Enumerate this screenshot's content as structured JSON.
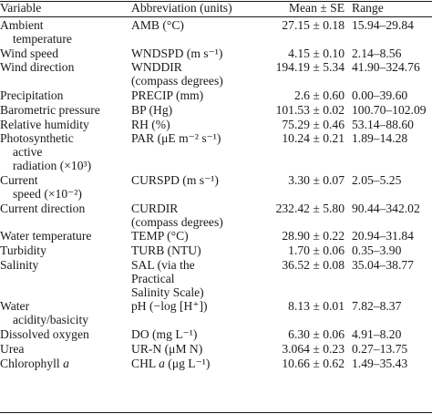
{
  "table": {
    "headers": [
      "Variable",
      "Abbreviation (units)",
      "Mean ± SE",
      "Range"
    ],
    "rows": [
      {
        "variable": [
          "Ambient",
          "temperature"
        ],
        "abbr": [
          "AMB (°C)"
        ],
        "mean": "27.15 ± 0.18",
        "range": "15.94–29.84"
      },
      {
        "variable": [
          "Wind speed"
        ],
        "abbr": [
          "WNDSPD (m s⁻¹)"
        ],
        "mean": "4.15 ± 0.10",
        "range": "2.14–8.56"
      },
      {
        "variable": [
          "Wind direction"
        ],
        "abbr": [
          "WNDDIR",
          "(compass degrees)"
        ],
        "mean": "194.19 ± 5.34",
        "range": "41.90–324.76"
      },
      {
        "variable": [
          "Precipitation"
        ],
        "abbr": [
          "PRECIP (mm)"
        ],
        "mean": "2.6 ± 0.60",
        "range": "0.00–39.60"
      },
      {
        "variable": [
          "Barometric pressure"
        ],
        "abbr": [
          "BP (Hg)"
        ],
        "mean": "101.53 ± 0.02",
        "range": "100.70–102.09"
      },
      {
        "variable": [
          "Relative humidity"
        ],
        "abbr": [
          "RH (%)"
        ],
        "mean": "75.29 ± 0.46",
        "range": "53.14–88.60"
      },
      {
        "variable": [
          "Photosynthetic",
          "active",
          "radiation (×10³)"
        ],
        "abbr": [
          "PAR (μE m⁻² s⁻¹)"
        ],
        "mean": "10.24 ± 0.21",
        "range": "1.89–14.28"
      },
      {
        "variable": [
          "Current",
          "speed (×10⁻²)"
        ],
        "abbr": [
          "CURSPD (m s⁻¹)"
        ],
        "mean": "3.30 ± 0.07",
        "range": "2.05–5.25"
      },
      {
        "variable": [
          "Current direction"
        ],
        "abbr": [
          "CURDIR",
          "(compass degrees)"
        ],
        "mean": "232.42 ± 5.80",
        "range": "90.44–342.02"
      },
      {
        "variable": [
          "Water temperature"
        ],
        "abbr": [
          "TEMP (°C)"
        ],
        "mean": "28.90 ± 0.22",
        "range": "20.94–31.84"
      },
      {
        "variable": [
          "Turbidity"
        ],
        "abbr": [
          "TURB (NTU)"
        ],
        "mean": "1.70 ± 0.06",
        "range": "0.35–3.90"
      },
      {
        "variable": [
          "Salinity"
        ],
        "abbr": [
          "SAL (via the",
          "Practical",
          "Salinity Scale)"
        ],
        "mean": "36.52 ± 0.08",
        "range": "35.04–38.77"
      },
      {
        "variable": [
          "Water",
          "acidity/basicity"
        ],
        "abbr": [
          "pH (−log [H⁺])"
        ],
        "mean": "8.13 ± 0.01",
        "range": "7.82–8.37"
      },
      {
        "variable": [
          "Dissolved oxygen"
        ],
        "abbr": [
          "DO (mg L⁻¹)"
        ],
        "mean": "6.30 ± 0.06",
        "range": "4.91–8.20"
      },
      {
        "variable": [
          "Urea"
        ],
        "abbr": [
          "UR-N (μM N)"
        ],
        "mean": "3.064 ± 0.23",
        "range": "0.27–13.75"
      },
      {
        "variable": [
          "Chlorophyll a"
        ],
        "abbr": [
          "CHL a (μg L⁻¹)"
        ],
        "mean": "10.66 ± 0.62",
        "range": "1.49–35.43"
      }
    ]
  }
}
